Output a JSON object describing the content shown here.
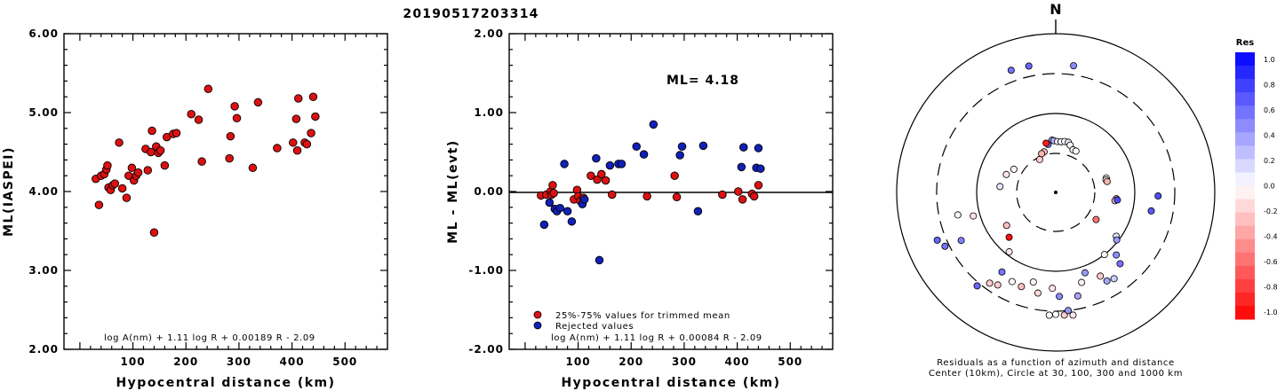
{
  "title": "20190517203314",
  "colors": {
    "accepted": "#dd1111",
    "rejected": "#1020b8",
    "edge": "#000000"
  },
  "panel1": {
    "xlabel": "Hypocentral distance (km)",
    "ylabel": "ML(IASPEI)",
    "xticks": [
      "100",
      "200",
      "300",
      "400",
      "500"
    ],
    "yticks": [
      "2.00",
      "3.00",
      "4.00",
      "5.00",
      "6.00"
    ],
    "formula": "log A(nm) + 1.11 log R + 0.00189 R - 2.09"
  },
  "panel2": {
    "xlabel": "Hypocentral distance (km)",
    "ylabel": "ML - ML(evt)",
    "xticks": [
      "100",
      "200",
      "300",
      "400",
      "500"
    ],
    "yticks": [
      "-2.00",
      "-1.00",
      "0.00",
      "1.00",
      "2.00"
    ],
    "ml_label": "ML=  4.18",
    "legend_accepted": "25%-75% values for trimmed mean",
    "legend_rejected": "Rejected values",
    "formula": "log A(nm) + 1.11 log R + 0.00084 R - 2.09"
  },
  "panel3": {
    "north": "N",
    "caption1": "Residuals as a function of azimuth and distance",
    "caption2": "Center (10km), Circle at 30, 100, 300 and 1000 km",
    "colorbar_title": "Res",
    "colorbar_ticks": [
      "1.0",
      "0.8",
      "0.6",
      "0.4",
      "0.2",
      "0.0",
      "-0.2",
      "-0.4",
      "-0.6",
      "-0.8",
      "-1.0"
    ]
  },
  "chart_data": [
    {
      "type": "scatter",
      "title": "20190517203314",
      "xlabel": "Hypocentral distance (km)",
      "ylabel": "ML(IASPEI)",
      "xlim": [
        -30,
        580
      ],
      "ylim": [
        2.0,
        6.0
      ],
      "grid": false,
      "series": [
        {
          "points": [
            [
              30,
              4.16
            ],
            [
              36,
              3.83
            ],
            [
              40,
              4.2
            ],
            [
              46,
              4.22
            ],
            [
              50,
              4.28
            ],
            [
              52,
              4.33
            ],
            [
              54,
              4.05
            ],
            [
              58,
              4.02
            ],
            [
              62,
              4.08
            ],
            [
              66,
              4.1
            ],
            [
              74,
              4.62
            ],
            [
              80,
              4.04
            ],
            [
              88,
              3.92
            ],
            [
              92,
              4.2
            ],
            [
              98,
              4.3
            ],
            [
              102,
              4.14
            ],
            [
              106,
              4.2
            ],
            [
              110,
              4.24
            ],
            [
              124,
              4.54
            ],
            [
              128,
              4.27
            ],
            [
              134,
              4.5
            ],
            [
              136,
              4.77
            ],
            [
              140,
              3.48
            ],
            [
              144,
              4.57
            ],
            [
              148,
              4.49
            ],
            [
              152,
              4.52
            ],
            [
              160,
              4.33
            ],
            [
              164,
              4.69
            ],
            [
              176,
              4.73
            ],
            [
              182,
              4.74
            ],
            [
              210,
              4.98
            ],
            [
              224,
              4.91
            ],
            [
              230,
              4.38
            ],
            [
              242,
              5.3
            ],
            [
              282,
              4.42
            ],
            [
              284,
              4.7
            ],
            [
              292,
              5.08
            ],
            [
              296,
              4.93
            ],
            [
              326,
              4.3
            ],
            [
              336,
              5.13
            ],
            [
              372,
              4.55
            ],
            [
              402,
              4.62
            ],
            [
              408,
              4.92
            ],
            [
              410,
              4.52
            ],
            [
              412,
              5.18
            ],
            [
              424,
              4.62
            ],
            [
              428,
              4.6
            ],
            [
              436,
              4.74
            ],
            [
              440,
              5.2
            ],
            [
              444,
              4.95
            ]
          ]
        }
      ]
    },
    {
      "type": "scatter",
      "xlabel": "Hypocentral distance (km)",
      "ylabel": "ML - ML(evt)",
      "xlim": [
        -30,
        580
      ],
      "ylim": [
        -2.0,
        2.0
      ],
      "grid": false,
      "hline": 0.0,
      "annotation": "ML=  4.18",
      "series": [
        {
          "name": "25%-75% values for trimmed mean",
          "color": "#dd1111",
          "points": [
            [
              30,
              -0.05
            ],
            [
              40,
              -0.04
            ],
            [
              48,
              0.0
            ],
            [
              50,
              -0.04
            ],
            [
              52,
              0.08
            ],
            [
              54,
              -0.02
            ],
            [
              92,
              -0.1
            ],
            [
              98,
              0.02
            ],
            [
              100,
              -0.06
            ],
            [
              104,
              -0.12
            ],
            [
              110,
              -0.08
            ],
            [
              124,
              0.2
            ],
            [
              136,
              0.15
            ],
            [
              144,
              0.22
            ],
            [
              152,
              0.14
            ],
            [
              164,
              -0.04
            ],
            [
              230,
              -0.06
            ],
            [
              282,
              0.2
            ],
            [
              286,
              -0.07
            ],
            [
              372,
              -0.04
            ],
            [
              402,
              0.0
            ],
            [
              410,
              -0.1
            ],
            [
              428,
              -0.03
            ],
            [
              432,
              -0.06
            ],
            [
              440,
              0.08
            ]
          ]
        },
        {
          "name": "Rejected values",
          "color": "#1020b8",
          "points": [
            [
              36,
              -0.42
            ],
            [
              46,
              -0.14
            ],
            [
              56,
              -0.22
            ],
            [
              60,
              -0.25
            ],
            [
              66,
              -0.21
            ],
            [
              74,
              0.35
            ],
            [
              80,
              -0.25
            ],
            [
              88,
              -0.38
            ],
            [
              108,
              -0.16
            ],
            [
              112,
              -0.1
            ],
            [
              134,
              0.42
            ],
            [
              140,
              -0.87
            ],
            [
              160,
              0.33
            ],
            [
              176,
              0.35
            ],
            [
              182,
              0.35
            ],
            [
              210,
              0.57
            ],
            [
              224,
              0.47
            ],
            [
              242,
              0.85
            ],
            [
              292,
              0.46
            ],
            [
              296,
              0.57
            ],
            [
              326,
              -0.25
            ],
            [
              336,
              0.58
            ],
            [
              408,
              0.31
            ],
            [
              412,
              0.56
            ],
            [
              436,
              0.3
            ],
            [
              440,
              0.55
            ],
            [
              444,
              0.29
            ]
          ]
        }
      ]
    },
    {
      "type": "scatter",
      "subtype": "polar residual map",
      "north": "N",
      "caption": [
        "Residuals as a function of azimuth and distance",
        "Center (10km), Circle at 30, 100, 300 and 1000 km"
      ],
      "ring_distances_km": [
        30,
        100,
        300,
        1000
      ],
      "colorbar": {
        "title": "Res",
        "range": [
          -1.0,
          1.0
        ]
      },
      "points_azimuth_deg_distance_km_residual": [
        [
          351,
          40,
          0.55
        ],
        [
          356,
          45,
          0.35
        ],
        [
          358,
          44,
          0.3
        ],
        [
          2,
          43,
          0.08
        ],
        [
          6,
          43,
          -0.04
        ],
        [
          10,
          44,
          -0.02
        ],
        [
          14,
          44,
          0.1
        ],
        [
          17,
          41,
          0.0
        ],
        [
          22,
          37,
          0.05
        ],
        [
          26,
          37,
          0.0
        ],
        [
          349,
          42,
          -0.9
        ],
        [
          344,
          33,
          -0.25
        ],
        [
          340,
          32,
          -0.3
        ],
        [
          334,
          28,
          -0.2
        ],
        [
          348,
          410,
          0.6
        ],
        [
          340,
          420,
          0.55
        ],
        [
          8,
          395,
          0.45
        ],
        [
          74,
          45,
          -0.04
        ],
        [
          76,
          44,
          -0.02
        ],
        [
          78,
          45,
          -0.3
        ],
        [
          96,
          58,
          -0.3
        ],
        [
          98,
          56,
          -0.3
        ],
        [
          97,
          60,
          0.7
        ],
        [
          92,
          190,
          0.7
        ],
        [
          101,
          165,
          0.65
        ],
        [
          124,
          40,
          -0.55
        ],
        [
          126,
          88,
          0.1
        ],
        [
          128,
          95,
          0.4
        ],
        [
          136,
          125,
          0.45
        ],
        [
          138,
          160,
          0.55
        ],
        [
          142,
          100,
          -0.05
        ],
        [
          150,
          190,
          0.35
        ],
        [
          146,
          200,
          0.2
        ],
        [
          152,
          155,
          -0.2
        ],
        [
          160,
          120,
          0.4
        ],
        [
          164,
          150,
          -0.05
        ],
        [
          168,
          210,
          0.35
        ],
        [
          172,
          350,
          -0.1
        ],
        [
          176,
          340,
          -0.2
        ],
        [
          180,
          330,
          0.0
        ],
        [
          183,
          340,
          0.0
        ],
        [
          174,
          300,
          0.4
        ],
        [
          178,
          200,
          0.45
        ],
        [
          182,
          160,
          -0.1
        ],
        [
          190,
          190,
          -0.15
        ],
        [
          194,
          145,
          -0.05
        ],
        [
          200,
          180,
          -0.25
        ],
        [
          206,
          175,
          0.0
        ],
        [
          214,
          160,
          0.55
        ],
        [
          218,
          90,
          -0.1
        ],
        [
          226,
          65,
          -0.95
        ],
        [
          236,
          55,
          -0.25
        ],
        [
          244,
          340,
          0.55
        ],
        [
          248,
          390,
          0.6
        ],
        [
          243,
          210,
          0.5
        ],
        [
          257,
          180,
          -0.05
        ],
        [
          276,
          50,
          0.1
        ],
        [
          254,
          120,
          -0.1
        ],
        [
          290,
          45,
          -0.1
        ],
        [
          299,
          39,
          -0.05
        ],
        [
          220,
          330,
          0.6
        ],
        [
          216,
          250,
          -0.2
        ],
        [
          212,
          230,
          -0.2
        ]
      ]
    }
  ]
}
